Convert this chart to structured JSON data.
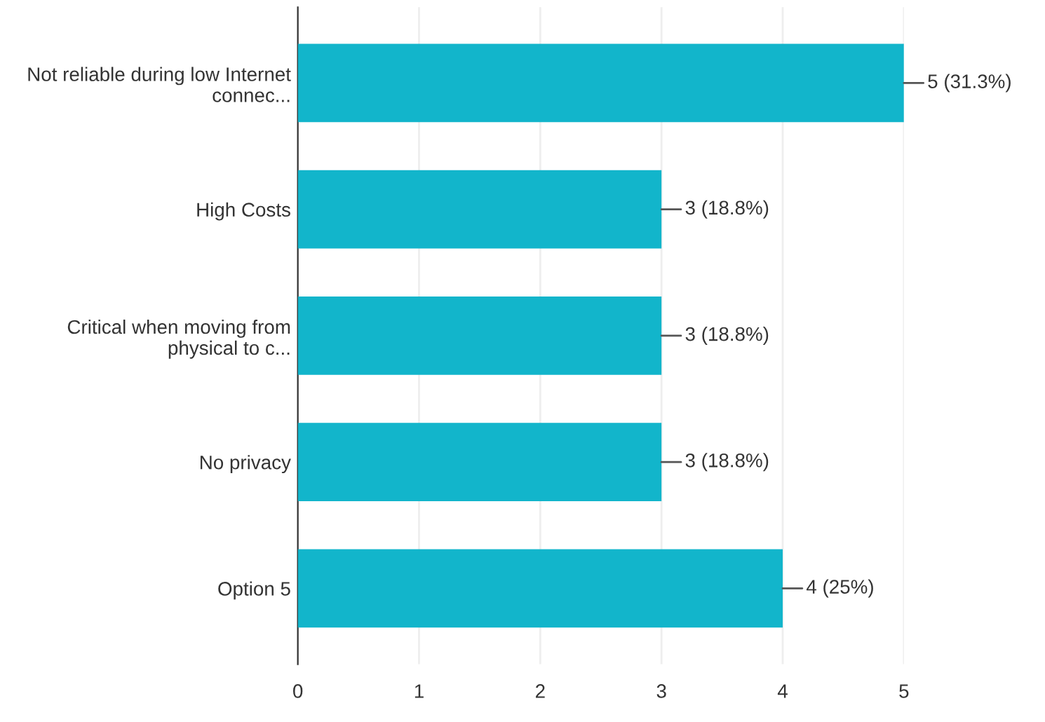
{
  "chart_data": {
    "type": "bar",
    "orientation": "horizontal",
    "categories": [
      "Not reliable during low Internet\nconnec...",
      "High Costs",
      "Critical when moving from\nphysical to c...",
      "No privacy",
      "Option 5"
    ],
    "values": [
      5,
      3,
      3,
      3,
      4
    ],
    "value_labels": [
      "5 (31.3%)",
      "3 (18.8%)",
      "3 (18.8%)",
      "3 (18.8%)",
      "4 (25%)"
    ],
    "color": "#12b5cb",
    "xlim": [
      0,
      5
    ],
    "xticks": [
      0,
      1,
      2,
      3,
      4,
      5
    ],
    "grid": "x",
    "legend": false
  }
}
